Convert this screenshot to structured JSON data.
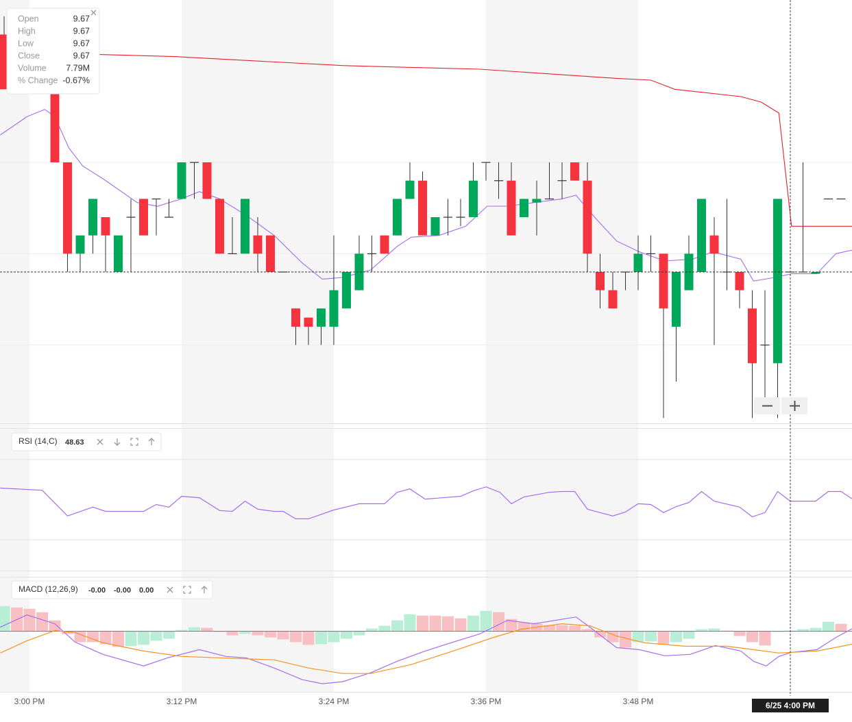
{
  "chart_data": [
    {
      "type": "candlestick",
      "xlim": [
        -2.324,
        64.865
      ],
      "xticks": [
        {
          "value": 0,
          "label": "3:00 PM"
        },
        {
          "value": 12,
          "label": "3:12 PM"
        },
        {
          "value": 24,
          "label": "3:24 PM"
        },
        {
          "value": 36,
          "label": "3:36 PM"
        },
        {
          "value": 48,
          "label": "3:48 PM"
        }
      ],
      "ylim": [
        9.5871,
        9.8189
      ],
      "gridlines": [
        9.73,
        9.68,
        9.63
      ],
      "last_price": 9.67,
      "crosshair": {
        "x": 60,
        "label": "6/25 4:00 PM"
      },
      "up_color": "#00a85a",
      "down_color": "#f5333f",
      "x": [
        -2,
        -1,
        0,
        1,
        2,
        3,
        4,
        5,
        6,
        7,
        8,
        9,
        10,
        11,
        12,
        13,
        14,
        15,
        16,
        17,
        18,
        19,
        20,
        21,
        22,
        23,
        24,
        25,
        26,
        27,
        28,
        29,
        30,
        31,
        32,
        33,
        34,
        35,
        36,
        37,
        38,
        39,
        40,
        41,
        42,
        43,
        44,
        45,
        46,
        47,
        48,
        49,
        50,
        51,
        52,
        53,
        54,
        55,
        56,
        57,
        58,
        59,
        60,
        61,
        62,
        63,
        64
      ],
      "open": [
        9.8,
        9.78,
        9.79,
        9.78,
        9.78,
        9.73,
        9.68,
        9.69,
        9.7,
        9.67,
        9.7,
        9.71,
        9.71,
        9.7,
        9.71,
        9.73,
        9.73,
        9.71,
        9.68,
        9.68,
        9.69,
        9.69,
        9.67,
        9.65,
        9.645,
        9.64,
        9.64,
        9.65,
        9.66,
        9.68,
        9.69,
        9.69,
        9.71,
        9.72,
        9.69,
        9.7,
        9.7,
        9.7,
        9.73,
        9.72,
        9.72,
        9.7,
        9.708,
        9.71,
        9.72,
        9.73,
        9.72,
        9.67,
        9.66,
        9.67,
        9.67,
        9.68,
        9.68,
        9.64,
        9.66,
        9.67,
        9.69,
        9.67,
        9.67,
        9.65,
        9.63,
        9.62,
        9.67,
        9.67,
        9.669,
        9.71,
        9.71
      ],
      "high": [
        9.81,
        9.79,
        9.8,
        9.78,
        9.78,
        9.73,
        9.69,
        9.71,
        9.7,
        9.69,
        9.71,
        9.71,
        9.71,
        9.71,
        9.73,
        9.73,
        9.73,
        9.71,
        9.7,
        9.71,
        9.7,
        9.69,
        9.67,
        9.65,
        9.645,
        9.65,
        9.69,
        9.67,
        9.69,
        9.69,
        9.69,
        9.71,
        9.73,
        9.725,
        9.7,
        9.71,
        9.71,
        9.73,
        9.73,
        9.73,
        9.73,
        9.71,
        9.72,
        9.73,
        9.73,
        9.73,
        9.73,
        9.68,
        9.67,
        9.67,
        9.69,
        9.69,
        9.68,
        9.67,
        9.69,
        9.71,
        9.7,
        9.71,
        9.67,
        9.66,
        9.66,
        9.71,
        9.67,
        9.73,
        9.67,
        9.71,
        9.71
      ],
      "low": [
        9.77,
        9.77,
        9.78,
        9.78,
        9.73,
        9.67,
        9.67,
        9.68,
        9.67,
        9.67,
        9.67,
        9.69,
        9.69,
        9.7,
        9.71,
        9.71,
        9.71,
        9.68,
        9.68,
        9.68,
        9.67,
        9.67,
        9.67,
        9.63,
        9.63,
        9.63,
        9.63,
        9.65,
        9.66,
        9.67,
        9.68,
        9.69,
        9.71,
        9.69,
        9.69,
        9.69,
        9.695,
        9.7,
        9.72,
        9.71,
        9.69,
        9.7,
        9.69,
        9.71,
        9.71,
        9.72,
        9.67,
        9.65,
        9.65,
        9.66,
        9.66,
        9.67,
        9.59,
        9.61,
        9.66,
        9.67,
        9.63,
        9.66,
        9.65,
        9.59,
        9.6,
        9.59,
        9.67,
        9.67,
        9.669,
        9.71,
        9.71
      ],
      "close": [
        9.77,
        9.79,
        9.78,
        9.78,
        9.73,
        9.68,
        9.69,
        9.71,
        9.69,
        9.69,
        9.7,
        9.69,
        9.71,
        9.7,
        9.73,
        9.73,
        9.71,
        9.68,
        9.68,
        9.71,
        9.68,
        9.67,
        9.67,
        9.64,
        9.64,
        9.65,
        9.66,
        9.67,
        9.68,
        9.68,
        9.68,
        9.71,
        9.72,
        9.69,
        9.7,
        9.7,
        9.7,
        9.72,
        9.73,
        9.72,
        9.69,
        9.71,
        9.71,
        9.71,
        9.72,
        9.72,
        9.68,
        9.66,
        9.65,
        9.67,
        9.68,
        9.68,
        9.65,
        9.67,
        9.68,
        9.71,
        9.68,
        9.67,
        9.66,
        9.62,
        9.63,
        9.71,
        9.67,
        9.67,
        9.67,
        9.71,
        9.71
      ],
      "lines": [
        {
          "color": "#e8202a",
          "x": [
            -2.3,
            5.8,
            11.2,
            24.7,
            30.1,
            35.5,
            46.3,
            49,
            50.9,
            56.1,
            57.7,
            59.1,
            60.1,
            64.9
          ],
          "values": [
            9.79,
            9.789,
            9.788,
            9.783,
            9.782,
            9.781,
            9.776,
            9.775,
            9.77,
            9.766,
            9.763,
            9.757,
            9.695,
            9.695
          ]
        },
        {
          "color": "#a66cf0",
          "x": [
            -2.3,
            -0.2,
            1.2,
            2,
            3.1,
            4.2,
            5.8,
            8.5,
            10.1,
            12,
            13.4,
            15,
            17.1,
            19.3,
            21.5,
            23.1,
            24.7,
            26.9,
            29,
            30.1,
            32.3,
            34.4,
            36.1,
            37.7,
            39.8,
            42,
            43.1,
            44.7,
            46.3,
            48.1,
            50.1,
            52.3,
            53.9,
            56.1,
            57.1,
            58.8,
            60.1,
            61.1,
            62.1,
            63.6,
            64.9
          ],
          "values": [
            9.745,
            9.755,
            9.759,
            9.755,
            9.738,
            9.728,
            9.721,
            9.708,
            9.706,
            9.71,
            9.714,
            9.71,
            9.701,
            9.69,
            9.675,
            9.666,
            9.667,
            9.671,
            9.684,
            9.689,
            9.69,
            9.695,
            9.706,
            9.706,
            9.708,
            9.71,
            9.712,
            9.699,
            9.687,
            9.681,
            9.676,
            9.677,
            9.681,
            9.677,
            9.665,
            9.667,
            9.669,
            9.669,
            9.669,
            9.68,
            9.682
          ]
        }
      ],
      "tooltip": [
        {
          "label": "Open",
          "value": 9.67
        },
        {
          "label": "High",
          "value": 9.67
        },
        {
          "label": "Low",
          "value": 9.67
        },
        {
          "label": "Close",
          "value": 9.67
        },
        {
          "label": "Volume",
          "value": "7.79M"
        },
        {
          "label": "% Change",
          "value": "-0.67%"
        }
      ]
    },
    {
      "type": "line",
      "title": "RSI (14,C)",
      "value_label": 48.63,
      "color": "#a66cf0",
      "ylim": [
        14.7,
        85.3
      ],
      "reference_lines": [
        70,
        30
      ],
      "x": [
        -2.3,
        1,
        3,
        5,
        6,
        9,
        10,
        11,
        12,
        13.4,
        15,
        16,
        17,
        18,
        19.3,
        20,
        21,
        22,
        24,
        26,
        28,
        29,
        30,
        31.2,
        34,
        35,
        36,
        37.1,
        38,
        39,
        41,
        42,
        43,
        44,
        45,
        46,
        47,
        48,
        49,
        50,
        51,
        52,
        53,
        54,
        56,
        57,
        58,
        59,
        60,
        62,
        63,
        64,
        64.9
      ],
      "values": [
        55.8,
        54.7,
        41.9,
        46.3,
        44.2,
        44.2,
        47.6,
        46.3,
        51.7,
        51.0,
        44.6,
        44.2,
        49.3,
        45.3,
        44.2,
        44.2,
        40.5,
        40.5,
        44.9,
        48.0,
        48.0,
        53.7,
        55.4,
        50.3,
        51.7,
        54.4,
        56.4,
        53.7,
        48.0,
        51.4,
        53.7,
        54.1,
        54.1,
        45.3,
        43.6,
        41.9,
        43.9,
        48.0,
        47.6,
        43.6,
        46.6,
        48.6,
        54.1,
        49.3,
        46.3,
        41.5,
        43.6,
        54.1,
        49.3,
        49.3,
        54.1,
        54.1,
        50.3
      ]
    },
    {
      "type": "macd",
      "title": "MACD (12,26,9)",
      "value_labels": [
        "-0.00",
        "-0.00",
        "0.00"
      ],
      "ylim": [
        -0.0089,
        0.0079
      ],
      "histogram": {
        "up_color": "#b8eed6",
        "down_color": "#f8c0c3",
        "values": [
          0.0037,
          0.0035,
          0.0033,
          0.0028,
          0.0016,
          -0.0004,
          -0.0016,
          -0.0016,
          -0.0019,
          -0.0023,
          -0.0022,
          -0.002,
          -0.0014,
          -0.0011,
          0.0002,
          0.0006,
          0.0005,
          -0.0001,
          -0.0006,
          -0.0004,
          -0.0006,
          -0.0009,
          -0.0012,
          -0.0016,
          -0.002,
          -0.0019,
          -0.0016,
          -0.0011,
          -0.0006,
          0.0004,
          0.0008,
          0.0016,
          0.0025,
          0.0023,
          0.0023,
          0.0022,
          0.0019,
          0.0023,
          0.003,
          0.0028,
          0.0018,
          0.0013,
          0.0011,
          0.0009,
          0.0009,
          0.0008,
          0.0003,
          -0.0009,
          -0.0016,
          -0.0024,
          -0.0016,
          -0.0015,
          -0.0019,
          -0.0016,
          -0.0011,
          0.0003,
          0.0004,
          0.0001,
          -0.0007,
          -0.0016,
          -0.0021,
          -0.0001,
          0.0001,
          0.0003,
          0.0005,
          0.0014,
          0.0011
        ]
      },
      "series": [
        {
          "color": "#a66cf0",
          "x": [
            -2.3,
            -0.2,
            2,
            3.6,
            5.8,
            9,
            10.9,
            13.4,
            15.5,
            17.1,
            19.3,
            21.5,
            23.1,
            24.7,
            26.9,
            29,
            31.2,
            33.4,
            35.5,
            37.7,
            39.8,
            43.1,
            44.2,
            46.3,
            48.1,
            50.1,
            52.1,
            54.1,
            56.1,
            57.1,
            58.1,
            59.1,
            60.1,
            62.1,
            63.6,
            64.9
          ],
          "values": [
            0.0006,
            0.0024,
            0.0011,
            -0.0016,
            -0.0034,
            -0.0051,
            -0.0039,
            -0.0027,
            -0.0037,
            -0.0039,
            -0.0054,
            -0.0071,
            -0.0077,
            -0.0074,
            -0.0061,
            -0.0044,
            -0.0029,
            -0.0016,
            -0.0004,
            0.0016,
            0.0011,
            0.0021,
            0.0006,
            -0.0024,
            -0.0027,
            -0.0036,
            -0.0034,
            -0.0021,
            -0.0029,
            -0.0044,
            -0.0051,
            -0.0037,
            -0.0031,
            -0.0027,
            -0.0009,
            0.0004
          ]
        },
        {
          "color": "#f7931e",
          "x": [
            -2.3,
            -0.2,
            2,
            3.6,
            5.8,
            9,
            12,
            15,
            19.3,
            22,
            24.7,
            26.9,
            30.1,
            33.4,
            36.6,
            38.8,
            42,
            44.2,
            46.3,
            48.5,
            51.7,
            55,
            57.1,
            59.1,
            62.1,
            64.9
          ],
          "values": [
            -0.0032,
            -0.0014,
            0.0001,
            -0.0002,
            -0.0017,
            -0.0029,
            -0.0037,
            -0.0039,
            -0.0042,
            -0.0054,
            -0.0062,
            -0.0062,
            -0.0049,
            -0.0029,
            -0.0009,
            0.0003,
            0.0011,
            0.0008,
            -0.0007,
            -0.0017,
            -0.0022,
            -0.0022,
            -0.0027,
            -0.0032,
            -0.0029,
            -0.0019
          ]
        }
      ]
    }
  ]
}
